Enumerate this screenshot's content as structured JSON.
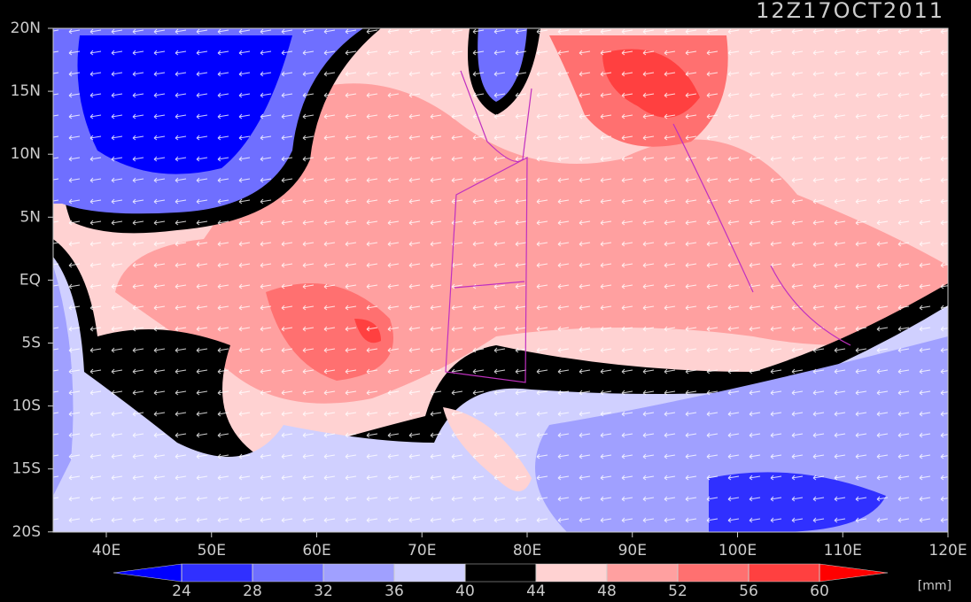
{
  "timestamp": "12Z17OCT2011",
  "map": {
    "lat_labels": [
      "20N",
      "15N",
      "10N",
      "5N",
      "EQ",
      "5S",
      "10S",
      "15S",
      "20S"
    ],
    "lon_labels": [
      "40E",
      "50E",
      "60E",
      "70E",
      "80E",
      "90E",
      "100E",
      "110E",
      "120E"
    ]
  },
  "colorbar": {
    "levels": [
      24,
      28,
      32,
      36,
      40,
      44,
      48,
      52,
      56,
      60
    ],
    "colors": [
      "#0000ff",
      "#3030ff",
      "#6f6fff",
      "#a0a0ff",
      "#d0d0ff",
      "#000000",
      "#ffd2d2",
      "#ffa0a0",
      "#ff7070",
      "#ff4040",
      "#ff0000"
    ],
    "unit": "[mm]"
  }
}
